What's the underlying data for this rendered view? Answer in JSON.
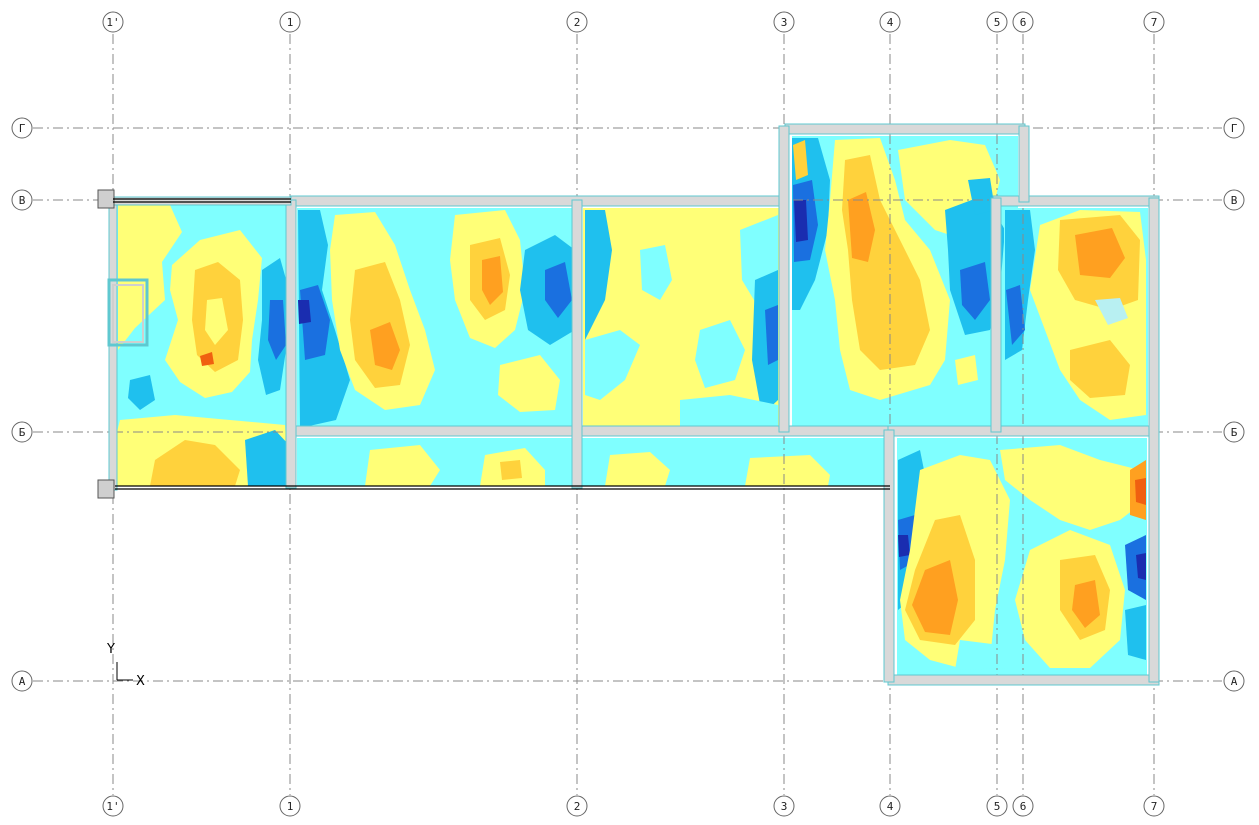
{
  "drawing": {
    "vertical_axes": [
      "1'",
      "1",
      "2",
      "3",
      "4",
      "5",
      "6",
      "7"
    ],
    "horizontal_axes": [
      "Г",
      "В",
      "Б",
      "А"
    ],
    "ucs": {
      "y_label": "Y",
      "x_label": "X"
    }
  },
  "colors": {
    "grid_line": "#8a8a8a",
    "beam_fill": "#d9d9d9",
    "beam_edge": "#5fc8d0",
    "contour_pale": "#b8f0f2",
    "contour_cyan": "#7fffff",
    "contour_blue": "#1fc0ee",
    "contour_deep": "#1a70e0",
    "contour_navy": "#1a2db0",
    "contour_yellow": "#ffff77",
    "contour_gold": "#ffd23c",
    "contour_orange": "#ffa020",
    "contour_red": "#f06010"
  }
}
